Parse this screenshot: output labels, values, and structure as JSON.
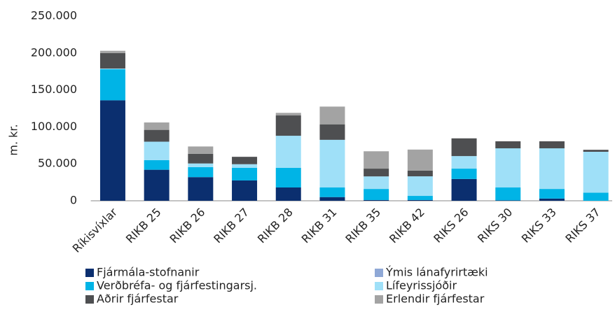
{
  "chart_data": {
    "type": "stacked_bar",
    "y_label": "m. kr.",
    "categories": [
      "Ríkisvíxlar",
      "RIKB 25",
      "RIKB 26",
      "RIKB 27",
      "RIKB 28",
      "RIKB 31",
      "RIKB 35",
      "RIKB 42",
      "RIKS 26",
      "RIKS 30",
      "RIKS 33",
      "RIKS 37"
    ],
    "series": [
      {
        "name": "Fjármála-stofnanir",
        "color": "#0b2f6f",
        "values": [
          136000,
          42000,
          32000,
          27500,
          18000,
          5000,
          1000,
          1000,
          29500,
          500,
          3000,
          0
        ]
      },
      {
        "name": "Ýmis lánafyrirtæki",
        "color": "#8fa8d6",
        "values": [
          0,
          0,
          0,
          0,
          0,
          0,
          0,
          0,
          0,
          0,
          0,
          0
        ]
      },
      {
        "name": "Verðbréfa- og fjárfestingarsj.",
        "color": "#00b4e6",
        "values": [
          42000,
          13000,
          13500,
          17000,
          26500,
          13000,
          15000,
          5600,
          14000,
          17500,
          13000,
          11000
        ]
      },
      {
        "name": "Lífeyrissjóðir",
        "color": "#9fe0f8",
        "values": [
          1000,
          25000,
          5000,
          5000,
          43500,
          64500,
          17000,
          26500,
          17000,
          53000,
          55000,
          55300
        ]
      },
      {
        "name": "Aðrir fjárfestar",
        "color": "#4e4f51",
        "values": [
          21000,
          16000,
          13000,
          10000,
          27500,
          21000,
          10500,
          7700,
          24000,
          9500,
          9500,
          2700
        ]
      },
      {
        "name": "Erlendir fjárfestar",
        "color": "#a3a3a3",
        "values": [
          3000,
          10000,
          10000,
          0,
          3500,
          24000,
          23500,
          28500,
          0,
          0,
          0,
          0
        ]
      }
    ],
    "ylim": [
      0,
      250000
    ],
    "yticks": [
      0,
      {
        "value": 50000,
        "label": "50.000"
      },
      {
        "value": 100000,
        "label": "100.000"
      },
      {
        "value": 150000,
        "label": "150.000"
      },
      {
        "value": 200000,
        "label": "200.000"
      },
      {
        "value": 250000,
        "label": "250.000"
      }
    ]
  }
}
